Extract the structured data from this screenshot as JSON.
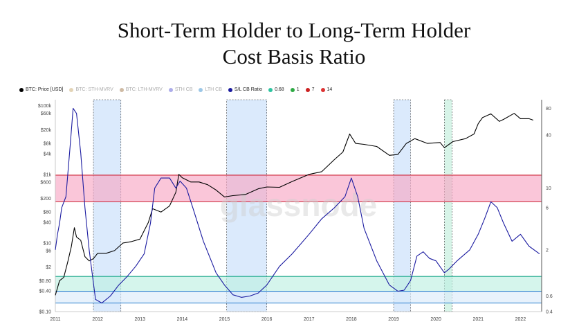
{
  "title": {
    "line1": "Short-Term Holder to Long-Term Holder",
    "line2": "Cost Basis Ratio"
  },
  "watermark": "glassnode",
  "legend": [
    {
      "label": "BTC: Price [USD]",
      "color": "#000000",
      "faded": false
    },
    {
      "label": "BTC: STH-MVRV",
      "color": "#c8a96e",
      "faded": true
    },
    {
      "label": "BTC: LTH-MVRV",
      "color": "#a0784a",
      "faded": true
    },
    {
      "label": "STH CB",
      "color": "#5b5bd6",
      "faded": true
    },
    {
      "label": "LTH CB",
      "color": "#3a8fd0",
      "faded": true
    },
    {
      "label": "S/L CB Ratio",
      "color": "#1a1a9e",
      "faded": false
    },
    {
      "label": "0.68",
      "color": "#2ec4a0",
      "faded": false
    },
    {
      "label": "1",
      "color": "#2eaa44",
      "faded": false
    },
    {
      "label": "7",
      "color": "#cc2222",
      "faded": false
    },
    {
      "label": "14",
      "color": "#dd3333",
      "faded": false
    }
  ],
  "chart_data": {
    "type": "line",
    "x_ticks": [
      "2011",
      "2012",
      "2013",
      "2014",
      "2015",
      "2016",
      "2017",
      "2018",
      "2019",
      "2020",
      "2021",
      "2022"
    ],
    "x_range": [
      2011.0,
      2022.5
    ],
    "y_left": {
      "scale": "log",
      "range": [
        0.1,
        150000
      ],
      "ticks": [
        "$100k",
        "$60k",
        "$20k",
        "$8k",
        "$4k",
        "$1k",
        "$600",
        "$200",
        "$80",
        "$40",
        "$10",
        "$6",
        "$2",
        "$0.80",
        "$0.40",
        "$0.10"
      ],
      "tick_values": [
        100000,
        60000,
        20000,
        8000,
        4000,
        1000,
        600,
        200,
        80,
        40,
        10,
        6,
        2,
        0.8,
        0.4,
        0.1
      ]
    },
    "y_right": {
      "scale": "log",
      "range": [
        0.4,
        100
      ],
      "ticks": [
        "80",
        "40",
        "10",
        "6",
        "2",
        "0.6",
        "0.4"
      ],
      "tick_values": [
        80,
        40,
        10,
        6,
        2,
        0.6,
        0.4
      ]
    },
    "bands": [
      {
        "from": 7,
        "to": 14,
        "color": "#f7a8c4",
        "edge_color": "#cc2233"
      },
      {
        "from": 0.68,
        "to": 1.0,
        "color": "#bff0e2",
        "edge_color": "#1aa88a"
      },
      {
        "from": 0.5,
        "to": 0.68,
        "color": "#dcebfa",
        "edge_color": "#2a7fcf"
      }
    ],
    "shaded_periods": [
      {
        "from": 2011.9,
        "to": 2012.55,
        "color": "#cfe3fb"
      },
      {
        "from": 2015.05,
        "to": 2016.0,
        "color": "#cfe3fb"
      },
      {
        "from": 2019.0,
        "to": 2019.4,
        "color": "#cfe3fb"
      },
      {
        "from": 2020.2,
        "to": 2020.38,
        "color": "#c9f0e0"
      }
    ],
    "series": [
      {
        "name": "BTC: Price [USD]",
        "axis": "left",
        "color": "#000000",
        "x": [
          2011.0,
          2011.1,
          2011.2,
          2011.3,
          2011.38,
          2011.45,
          2011.5,
          2011.6,
          2011.7,
          2011.8,
          2011.9,
          2012.0,
          2012.2,
          2012.4,
          2012.6,
          2012.8,
          2013.0,
          2013.2,
          2013.3,
          2013.5,
          2013.7,
          2013.85,
          2013.92,
          2014.0,
          2014.2,
          2014.4,
          2014.6,
          2014.8,
          2015.0,
          2015.2,
          2015.5,
          2015.8,
          2016.0,
          2016.3,
          2016.6,
          2017.0,
          2017.3,
          2017.6,
          2017.8,
          2017.96,
          2018.1,
          2018.3,
          2018.6,
          2018.9,
          2019.1,
          2019.3,
          2019.5,
          2019.8,
          2020.1,
          2020.2,
          2020.4,
          2020.7,
          2020.9,
          2021.0,
          2021.1,
          2021.3,
          2021.5,
          2021.6,
          2021.85,
          2022.0,
          2022.2,
          2022.3
        ],
        "y": [
          0.3,
          0.8,
          1.0,
          3,
          8,
          28,
          15,
          12,
          4,
          3,
          3.5,
          5,
          5,
          6,
          10,
          11,
          13,
          40,
          100,
          80,
          120,
          300,
          1000,
          800,
          600,
          600,
          500,
          350,
          220,
          240,
          260,
          380,
          430,
          420,
          620,
          1000,
          1200,
          2700,
          4500,
          15000,
          8000,
          7500,
          6500,
          3600,
          3800,
          8000,
          11000,
          8000,
          8500,
          6000,
          9000,
          11000,
          15000,
          30000,
          45000,
          58000,
          35000,
          40000,
          60000,
          42000,
          42000,
          38000
        ]
      },
      {
        "name": "S/L CB Ratio",
        "axis": "right",
        "color": "#1a1aa0",
        "x": [
          2011.0,
          2011.05,
          2011.1,
          2011.15,
          2011.25,
          2011.35,
          2011.42,
          2011.5,
          2011.6,
          2011.7,
          2011.8,
          2011.88,
          2011.95,
          2012.1,
          2012.3,
          2012.5,
          2012.7,
          2012.9,
          2013.1,
          2013.25,
          2013.35,
          2013.5,
          2013.7,
          2013.85,
          2013.95,
          2014.1,
          2014.25,
          2014.5,
          2014.8,
          2015.0,
          2015.2,
          2015.4,
          2015.6,
          2015.8,
          2016.0,
          2016.3,
          2016.6,
          2017.0,
          2017.3,
          2017.6,
          2017.85,
          2018.0,
          2018.15,
          2018.3,
          2018.6,
          2018.9,
          2019.1,
          2019.25,
          2019.4,
          2019.55,
          2019.7,
          2019.85,
          2020.0,
          2020.2,
          2020.3,
          2020.5,
          2020.8,
          2021.0,
          2021.15,
          2021.3,
          2021.45,
          2021.6,
          2021.8,
          2022.0,
          2022.2,
          2022.45
        ],
        "y": [
          2,
          3,
          4,
          6,
          8,
          30,
          80,
          70,
          25,
          6,
          2,
          1.0,
          0.55,
          0.5,
          0.6,
          0.8,
          1.0,
          1.3,
          1.8,
          4,
          10,
          13,
          13,
          10,
          12,
          10,
          6,
          2.5,
          1.1,
          0.8,
          0.62,
          0.58,
          0.6,
          0.65,
          0.8,
          1.3,
          1.8,
          3,
          4.5,
          6,
          8,
          13,
          8,
          3.5,
          1.5,
          0.8,
          0.68,
          0.7,
          0.9,
          1.7,
          1.9,
          1.6,
          1.5,
          1.1,
          1.2,
          1.5,
          2,
          3,
          4.5,
          7,
          6,
          4,
          2.5,
          3,
          2.2,
          1.8
        ]
      }
    ]
  }
}
